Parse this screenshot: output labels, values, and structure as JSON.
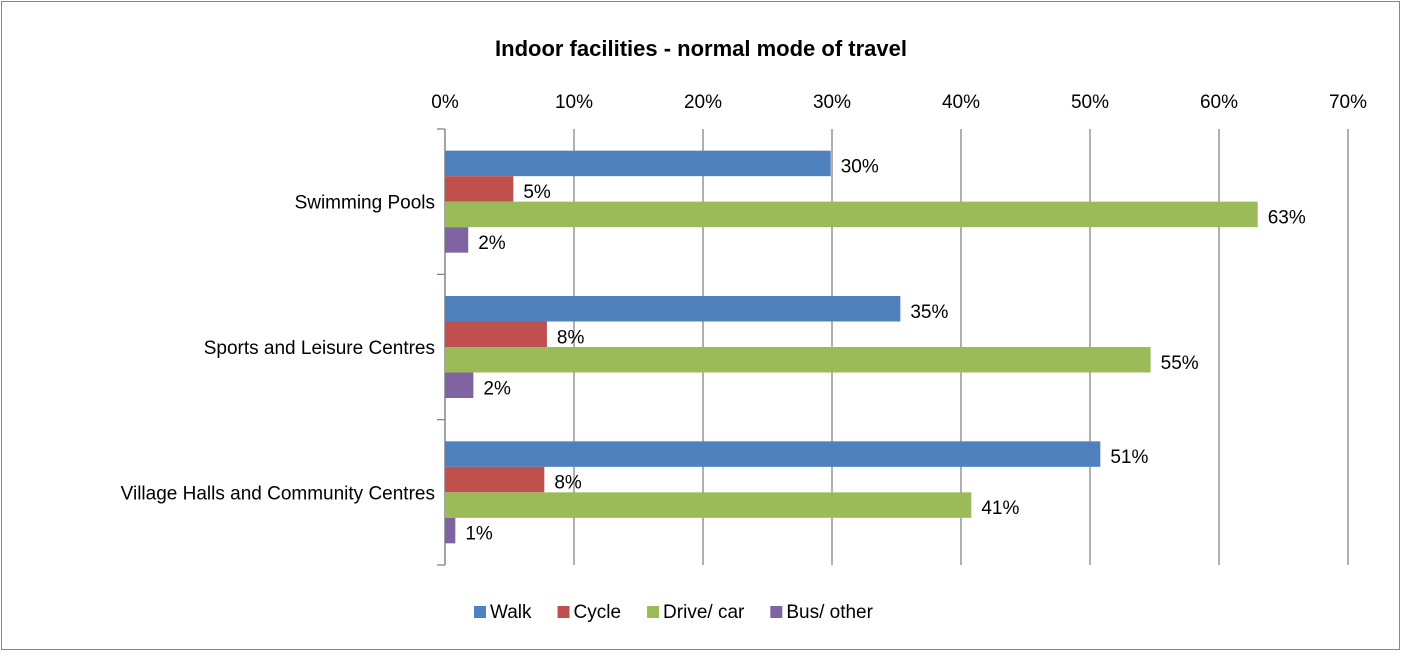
{
  "chart_data": {
    "type": "barh",
    "title": "Indoor facilities - normal mode of travel",
    "categories": [
      "Swimming Pools",
      "Sports and Leisure Centres",
      "Village Halls and Community Centres"
    ],
    "series": [
      {
        "name": "Walk",
        "color": "#4f81bd",
        "values": [
          29.9,
          35.3,
          50.8
        ],
        "value_labels": [
          "30%",
          "35%",
          "51%"
        ]
      },
      {
        "name": "Cycle",
        "color": "#c0504d",
        "values": [
          5.3,
          7.9,
          7.7
        ],
        "value_labels": [
          "5%",
          "8%",
          "8%"
        ]
      },
      {
        "name": "Drive/ car",
        "color": "#9bbb59",
        "values": [
          63.0,
          54.7,
          40.8
        ],
        "value_labels": [
          "63%",
          "55%",
          "41%"
        ]
      },
      {
        "name": "Bus/ other",
        "color": "#8064a2",
        "values": [
          1.8,
          2.2,
          0.8
        ],
        "value_labels": [
          "2%",
          "2%",
          "1%"
        ]
      }
    ],
    "xlim": [
      0,
      70
    ],
    "xticks": [
      {
        "value": 0,
        "label": "0%"
      },
      {
        "value": 10,
        "label": "10%"
      },
      {
        "value": 20,
        "label": "20%"
      },
      {
        "value": 30,
        "label": "30%"
      },
      {
        "value": 40,
        "label": "40%"
      },
      {
        "value": 50,
        "label": "50%"
      },
      {
        "value": 60,
        "label": "60%"
      },
      {
        "value": 70,
        "label": "70%"
      }
    ],
    "grid": true,
    "legend": "bottom"
  }
}
